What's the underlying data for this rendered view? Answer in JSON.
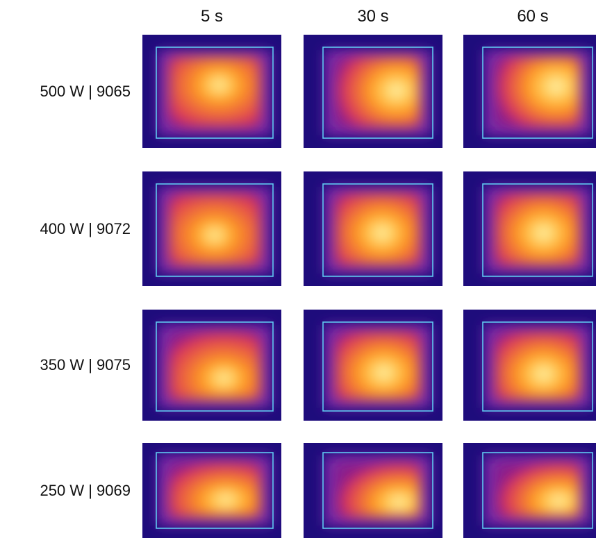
{
  "columns": [
    "5 s",
    "30 s",
    "60 s"
  ],
  "rows": [
    "500 W | 9065",
    "400 W | 9072",
    "350 W | 9075",
    "250 W | 9069"
  ]
}
